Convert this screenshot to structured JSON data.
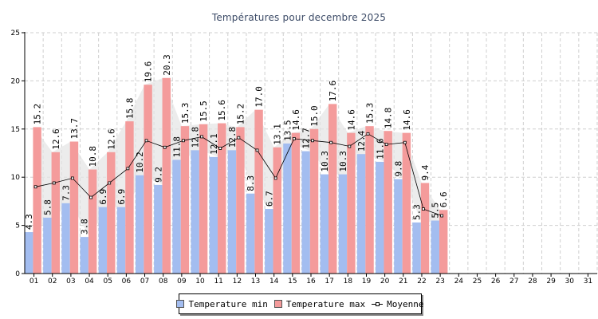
{
  "chart_data": {
    "type": "bar",
    "title": "Températures pour decembre 2025",
    "xlabel": "",
    "ylabel": "",
    "ylim": [
      0,
      25
    ],
    "yticks": [
      0,
      5,
      10,
      15,
      20,
      25
    ],
    "grid": true,
    "legend_position": "bottom",
    "categories": [
      "01",
      "02",
      "03",
      "04",
      "05",
      "06",
      "07",
      "08",
      "09",
      "10",
      "11",
      "12",
      "13",
      "14",
      "15",
      "16",
      "17",
      "18",
      "19",
      "20",
      "21",
      "22",
      "23",
      "24",
      "25",
      "26",
      "27",
      "28",
      "29",
      "30",
      "31"
    ],
    "series": [
      {
        "name": "Temperature min",
        "type": "bar",
        "color": "#a3bdf0",
        "values": [
          4.3,
          5.8,
          7.3,
          3.8,
          6.9,
          6.9,
          10.2,
          9.2,
          11.8,
          12.8,
          12.1,
          12.8,
          8.3,
          6.7,
          13.5,
          12.7,
          10.3,
          10.3,
          12.4,
          11.6,
          9.8,
          5.3,
          5.5,
          null,
          null,
          null,
          null,
          null,
          null,
          null,
          null
        ]
      },
      {
        "name": "Temperature max",
        "type": "bar",
        "color": "#f49b9b",
        "values": [
          15.2,
          12.6,
          13.7,
          10.8,
          12.6,
          15.8,
          19.6,
          20.3,
          15.3,
          15.5,
          15.6,
          15.2,
          17.0,
          13.1,
          14.6,
          15.0,
          17.6,
          14.6,
          15.3,
          14.8,
          14.6,
          9.4,
          6.6,
          null,
          null,
          null,
          null,
          null,
          null,
          null,
          null
        ]
      },
      {
        "name": "Moyenne",
        "type": "line",
        "color": "#000000",
        "values": [
          9.0,
          9.4,
          9.9,
          7.9,
          9.4,
          10.9,
          13.8,
          13.1,
          13.8,
          14.2,
          13.0,
          14.1,
          12.8,
          9.9,
          14.0,
          13.8,
          13.6,
          13.2,
          14.5,
          13.4,
          13.6,
          6.7,
          6.0,
          null,
          null,
          null,
          null,
          null,
          null,
          null,
          null
        ]
      }
    ]
  }
}
